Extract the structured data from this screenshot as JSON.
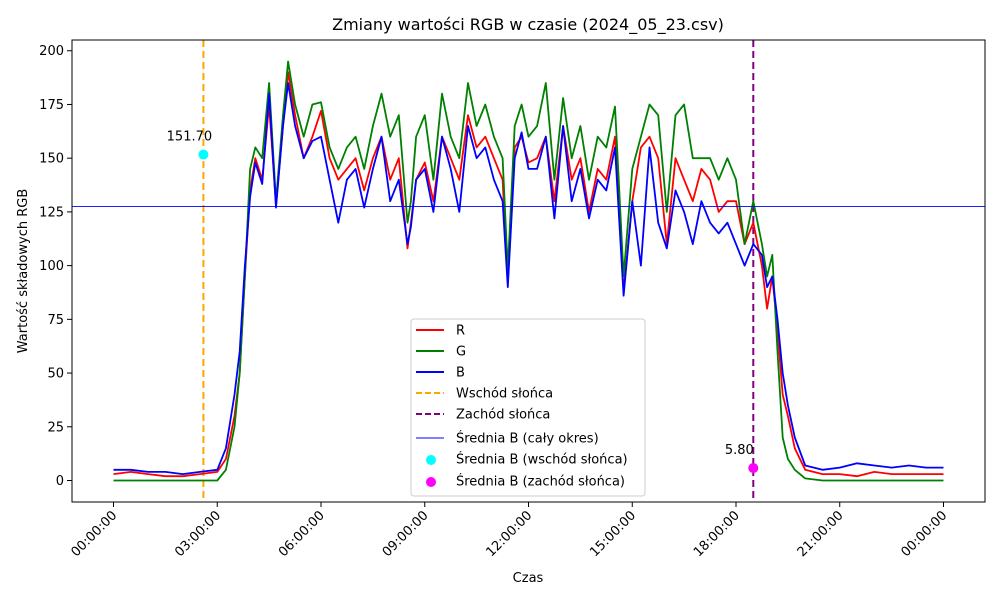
{
  "chart_data": {
    "type": "line",
    "title": "Zmiany wartości RGB w czasie (2024_05_23.csv)",
    "xlabel": "Czas",
    "ylabel": "Wartość składowych RGB",
    "x_unit": "hours",
    "xlim": [
      -1.2,
      25.2
    ],
    "ylim": [
      -10,
      205
    ],
    "x_ticks": [
      0,
      3,
      6,
      9,
      12,
      15,
      18,
      21,
      24
    ],
    "x_tick_labels": [
      "00:00:00",
      "03:00:00",
      "06:00:00",
      "09:00:00",
      "12:00:00",
      "15:00:00",
      "18:00:00",
      "21:00:00",
      "00:00:00"
    ],
    "y_ticks": [
      0,
      25,
      50,
      75,
      100,
      125,
      150,
      175,
      200
    ],
    "y_tick_labels": [
      "0",
      "25",
      "50",
      "75",
      "100",
      "125",
      "150",
      "175",
      "200"
    ],
    "grid": false,
    "legend_position": "bottom-center",
    "series": [
      {
        "name": "R",
        "color": "#ff0000",
        "x": [
          0,
          0.5,
          1.0,
          1.5,
          2.0,
          2.5,
          3.0,
          3.25,
          3.5,
          3.65,
          3.8,
          3.95,
          4.1,
          4.3,
          4.5,
          4.7,
          4.9,
          5.05,
          5.25,
          5.5,
          5.75,
          6.0,
          6.25,
          6.5,
          6.75,
          7.0,
          7.25,
          7.5,
          7.75,
          8.0,
          8.25,
          8.5,
          8.6,
          8.75,
          9.0,
          9.25,
          9.5,
          9.75,
          10.0,
          10.25,
          10.5,
          10.75,
          11.0,
          11.25,
          11.4,
          11.6,
          11.8,
          12.0,
          12.25,
          12.5,
          12.75,
          13.0,
          13.25,
          13.5,
          13.75,
          14.0,
          14.25,
          14.5,
          14.75,
          15.0,
          15.25,
          15.5,
          15.75,
          16.0,
          16.25,
          16.5,
          16.75,
          17.0,
          17.25,
          17.5,
          17.75,
          18.0,
          18.25,
          18.5,
          18.75,
          18.9,
          19.05,
          19.2,
          19.35,
          19.5,
          19.7,
          20.0,
          20.5,
          21.0,
          21.5,
          22.0,
          22.5,
          23.0,
          23.5,
          24.0
        ],
        "y": [
          3,
          4,
          3,
          2,
          2,
          3,
          4,
          10,
          30,
          50,
          95,
          135,
          150,
          140,
          175,
          128,
          165,
          190,
          170,
          150,
          160,
          172,
          150,
          140,
          145,
          150,
          135,
          150,
          160,
          140,
          150,
          108,
          120,
          140,
          148,
          130,
          160,
          150,
          140,
          170,
          155,
          160,
          150,
          140,
          92,
          155,
          160,
          148,
          150,
          160,
          130,
          165,
          140,
          150,
          125,
          145,
          140,
          160,
          88,
          130,
          155,
          160,
          150,
          110,
          150,
          140,
          130,
          145,
          140,
          125,
          130,
          130,
          110,
          120,
          100,
          80,
          95,
          70,
          40,
          30,
          15,
          5,
          3,
          3,
          2,
          4,
          3,
          3,
          3,
          3
        ]
      },
      {
        "name": "G",
        "color": "#008000",
        "x": [
          0,
          0.5,
          1.0,
          1.5,
          2.0,
          2.5,
          3.0,
          3.25,
          3.5,
          3.65,
          3.8,
          3.95,
          4.1,
          4.3,
          4.5,
          4.7,
          4.9,
          5.05,
          5.25,
          5.5,
          5.75,
          6.0,
          6.25,
          6.5,
          6.75,
          7.0,
          7.25,
          7.5,
          7.75,
          8.0,
          8.25,
          8.5,
          8.6,
          8.75,
          9.0,
          9.25,
          9.5,
          9.75,
          10.0,
          10.25,
          10.5,
          10.75,
          11.0,
          11.25,
          11.4,
          11.6,
          11.8,
          12.0,
          12.25,
          12.5,
          12.75,
          13.0,
          13.25,
          13.5,
          13.75,
          14.0,
          14.25,
          14.5,
          14.75,
          15.0,
          15.25,
          15.5,
          15.75,
          16.0,
          16.25,
          16.5,
          16.75,
          17.0,
          17.25,
          17.5,
          17.75,
          18.0,
          18.25,
          18.5,
          18.75,
          18.9,
          19.05,
          19.2,
          19.35,
          19.5,
          19.7,
          20.0,
          20.5,
          21.0,
          21.5,
          22.0,
          22.5,
          23.0,
          23.5,
          24.0
        ],
        "y": [
          0,
          0,
          0,
          0,
          0,
          0,
          0,
          5,
          25,
          50,
          95,
          145,
          155,
          150,
          185,
          130,
          170,
          195,
          175,
          160,
          175,
          176,
          155,
          145,
          155,
          160,
          145,
          165,
          180,
          160,
          170,
          120,
          130,
          160,
          170,
          140,
          180,
          160,
          150,
          185,
          165,
          175,
          160,
          150,
          98,
          165,
          175,
          160,
          165,
          185,
          140,
          178,
          150,
          165,
          140,
          160,
          155,
          174,
          95,
          145,
          160,
          175,
          170,
          125,
          170,
          175,
          150,
          150,
          150,
          140,
          150,
          140,
          110,
          130,
          110,
          95,
          105,
          60,
          20,
          10,
          5,
          1,
          0,
          0,
          0,
          0,
          0,
          0,
          0,
          0
        ]
      },
      {
        "name": "B",
        "color": "#0000ff",
        "x": [
          0,
          0.5,
          1.0,
          1.5,
          2.0,
          2.5,
          3.0,
          3.25,
          3.5,
          3.65,
          3.8,
          3.95,
          4.1,
          4.3,
          4.5,
          4.7,
          4.9,
          5.05,
          5.25,
          5.5,
          5.75,
          6.0,
          6.25,
          6.5,
          6.75,
          7.0,
          7.25,
          7.5,
          7.75,
          8.0,
          8.25,
          8.5,
          8.6,
          8.75,
          9.0,
          9.25,
          9.5,
          9.75,
          10.0,
          10.25,
          10.5,
          10.75,
          11.0,
          11.25,
          11.4,
          11.6,
          11.8,
          12.0,
          12.25,
          12.5,
          12.75,
          13.0,
          13.25,
          13.5,
          13.75,
          14.0,
          14.25,
          14.5,
          14.75,
          15.0,
          15.25,
          15.5,
          15.75,
          16.0,
          16.25,
          16.5,
          16.75,
          17.0,
          17.25,
          17.5,
          17.75,
          18.0,
          18.25,
          18.5,
          18.75,
          18.9,
          19.05,
          19.2,
          19.35,
          19.5,
          19.7,
          20.0,
          20.5,
          21.0,
          21.5,
          22.0,
          22.5,
          23.0,
          23.5,
          24.0
        ],
        "y": [
          5,
          5,
          4,
          4,
          3,
          4,
          5,
          15,
          40,
          60,
          100,
          132,
          148,
          138,
          180,
          127,
          165,
          185,
          165,
          150,
          158,
          160,
          140,
          120,
          140,
          145,
          127,
          145,
          160,
          130,
          140,
          110,
          118,
          140,
          145,
          125,
          160,
          145,
          125,
          165,
          150,
          155,
          140,
          130,
          90,
          150,
          162,
          145,
          145,
          160,
          122,
          165,
          130,
          145,
          122,
          140,
          135,
          155,
          86,
          130,
          100,
          155,
          120,
          108,
          135,
          125,
          110,
          130,
          120,
          115,
          120,
          110,
          100,
          110,
          105,
          90,
          95,
          75,
          50,
          35,
          20,
          7,
          5,
          6,
          8,
          7,
          6,
          7,
          6,
          6
        ]
      }
    ],
    "sunrise": {
      "label": "Wschód słońca",
      "x": 2.6,
      "color": "#ffa500"
    },
    "sunset": {
      "label": "Zachód słońca",
      "x": 18.5,
      "color": "#800080"
    },
    "mean_line": {
      "label": "Średnia B (cały okres)",
      "y": 127.5,
      "color": "#0000ff"
    },
    "mean_sunrise": {
      "label": "Średnia B (wschód słońca)",
      "x": 2.6,
      "y": 151.7,
      "text": "151.70",
      "color": "#00ffff"
    },
    "mean_sunset": {
      "label": "Średnia B (zachód słońca)",
      "x": 18.5,
      "y": 5.8,
      "text": "5.80",
      "color": "#ff00ff"
    },
    "legend": [
      "R",
      "G",
      "B",
      "Wschód słońca",
      "Zachód słońca",
      "Średnia B (cały okres)",
      "Średnia B (wschód słońca)",
      "Średnia B (zachód słońca)"
    ]
  }
}
